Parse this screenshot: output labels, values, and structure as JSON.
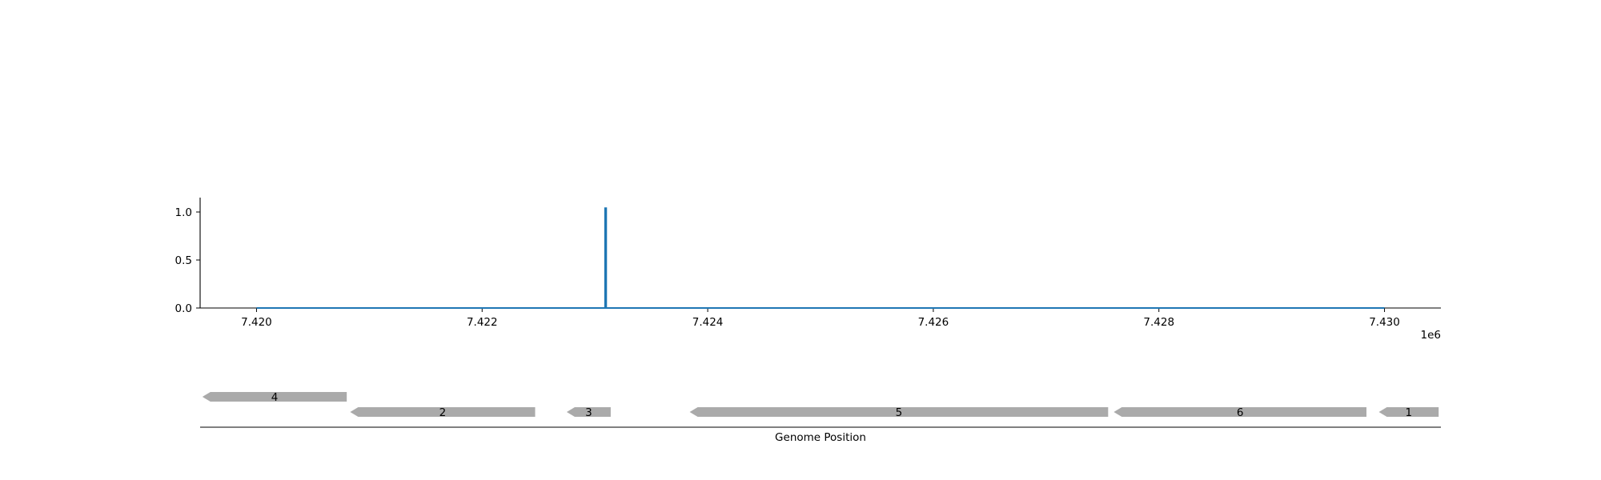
{
  "chart_data": {
    "type": "line",
    "title": "",
    "xlabel": "Genome Position",
    "ylabel": "",
    "x_offset_label": "1e6",
    "xlim": [
      7419500,
      7430500
    ],
    "ylim": [
      0,
      1.15
    ],
    "x_ticks": [
      7420000,
      7422000,
      7424000,
      7426000,
      7428000,
      7430000
    ],
    "x_tick_labels": [
      "7.420",
      "7.422",
      "7.424",
      "7.426",
      "7.428",
      "7.430"
    ],
    "y_ticks": [
      0.0,
      0.5,
      1.0
    ],
    "y_tick_labels": [
      "0.0",
      "0.5",
      "1.0"
    ],
    "grid": false,
    "series": [
      {
        "color": "#1f77b4",
        "x": [
          7420000,
          7423090,
          7423090,
          7423100,
          7423100,
          7430000
        ],
        "y": [
          0,
          0,
          1.04,
          1.04,
          0,
          0
        ]
      }
    ],
    "genes": [
      {
        "label": "4",
        "start": 7419520,
        "end": 7420800,
        "strand": "-",
        "row": 0
      },
      {
        "label": "2",
        "start": 7420830,
        "end": 7422470,
        "strand": "-",
        "row": 1
      },
      {
        "label": "3",
        "start": 7422750,
        "end": 7423140,
        "strand": "-",
        "row": 1
      },
      {
        "label": "5",
        "start": 7423840,
        "end": 7427550,
        "strand": "-",
        "row": 1
      },
      {
        "label": "6",
        "start": 7427600,
        "end": 7429840,
        "strand": "-",
        "row": 1
      },
      {
        "label": "1",
        "start": 7429950,
        "end": 7430480,
        "strand": "-",
        "row": 1
      }
    ],
    "gene_color": "#aaaaaa"
  }
}
